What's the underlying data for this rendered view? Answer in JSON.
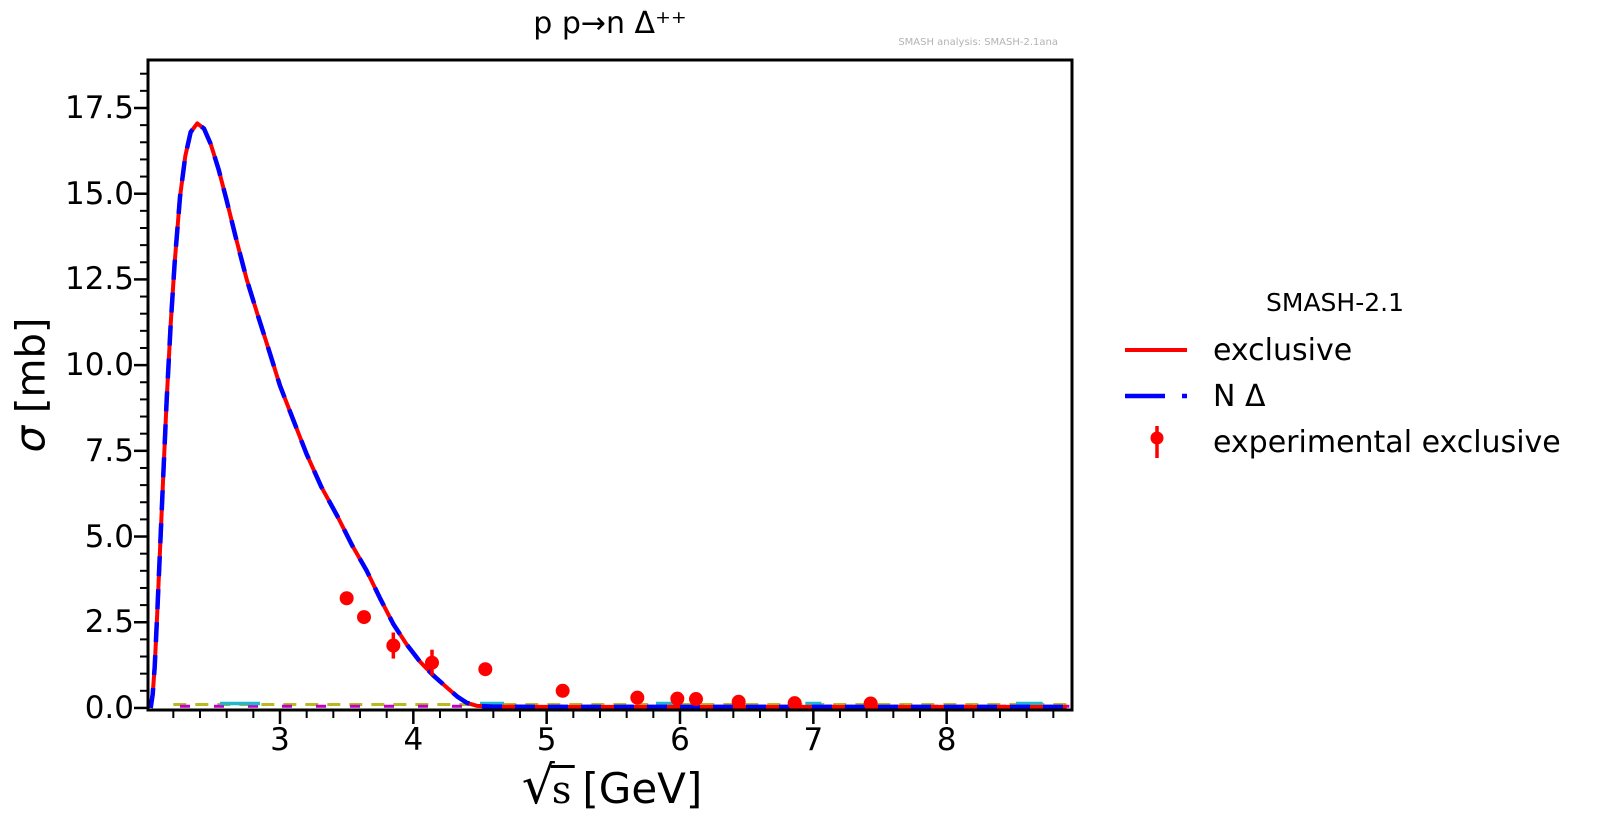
{
  "chart_data": {
    "type": "line",
    "title": "p p→n Δ⁺⁺",
    "analysis_note": "SMASH analysis: SMASH-2.1ana",
    "xlabel": {
      "radical": "√",
      "arg": "s",
      "unit": "[GeV]"
    },
    "ylabel": {
      "symbol": "σ",
      "unit": " [mb]"
    },
    "xlim": [
      2.01,
      8.94
    ],
    "ylim": [
      -0.06,
      18.9
    ],
    "x_major_ticks": [
      3,
      4,
      5,
      6,
      7,
      8
    ],
    "x_tick_labels": [
      "3",
      "4",
      "5",
      "6",
      "7",
      "8"
    ],
    "x_minor_step": 0.2,
    "y_major_ticks": [
      0,
      2.5,
      5,
      7.5,
      10,
      12.5,
      15,
      17.5
    ],
    "y_tick_labels": [
      "0.0",
      "2.5",
      "5.0",
      "7.5",
      "10.0",
      "12.5",
      "15.0",
      "17.5"
    ],
    "y_minor_step": 0.5,
    "grid": false,
    "series": [
      {
        "name": "exclusive",
        "color": "#ff0000",
        "style": "solid"
      },
      {
        "name": "N Δ",
        "color": "#0000ff",
        "style": "dashed"
      }
    ],
    "curve": [
      [
        2.03,
        0.0
      ],
      [
        2.045,
        0.4
      ],
      [
        2.06,
        1.2
      ],
      [
        2.08,
        2.8
      ],
      [
        2.1,
        4.6
      ],
      [
        2.125,
        6.8
      ],
      [
        2.15,
        9.0
      ],
      [
        2.18,
        11.2
      ],
      [
        2.21,
        13.0
      ],
      [
        2.25,
        14.9
      ],
      [
        2.29,
        16.1
      ],
      [
        2.33,
        16.8
      ],
      [
        2.38,
        17.05
      ],
      [
        2.43,
        16.9
      ],
      [
        2.48,
        16.45
      ],
      [
        2.54,
        15.7
      ],
      [
        2.6,
        14.8
      ],
      [
        2.67,
        13.7
      ],
      [
        2.75,
        12.5
      ],
      [
        2.83,
        11.5
      ],
      [
        2.92,
        10.4
      ],
      [
        3.0,
        9.4
      ],
      [
        3.1,
        8.4
      ],
      [
        3.2,
        7.4
      ],
      [
        3.31,
        6.45
      ],
      [
        3.43,
        5.6
      ],
      [
        3.54,
        4.75
      ],
      [
        3.65,
        4.0
      ],
      [
        3.75,
        3.2
      ],
      [
        3.85,
        2.45
      ],
      [
        3.95,
        1.85
      ],
      [
        4.05,
        1.35
      ],
      [
        4.15,
        0.95
      ],
      [
        4.25,
        0.6
      ],
      [
        4.33,
        0.33
      ],
      [
        4.4,
        0.15
      ],
      [
        4.48,
        0.06
      ],
      [
        4.6,
        0.04
      ],
      [
        5.0,
        0.03
      ],
      [
        5.5,
        0.03
      ],
      [
        6.0,
        0.03
      ],
      [
        6.5,
        0.03
      ],
      [
        7.0,
        0.03
      ],
      [
        7.5,
        0.03
      ],
      [
        8.0,
        0.03
      ],
      [
        8.5,
        0.03
      ],
      [
        8.9,
        0.03
      ]
    ],
    "experimental_points": [
      {
        "x": 3.5,
        "y": 3.2,
        "err": 0.13
      },
      {
        "x": 3.63,
        "y": 2.65,
        "err": 0.13
      },
      {
        "x": 3.85,
        "y": 1.82,
        "err": 0.38
      },
      {
        "x": 4.14,
        "y": 1.32,
        "err": 0.38
      },
      {
        "x": 4.54,
        "y": 1.13,
        "err": 0.1
      },
      {
        "x": 5.12,
        "y": 0.5,
        "err": 0.08
      },
      {
        "x": 5.68,
        "y": 0.3,
        "err": 0.06
      },
      {
        "x": 5.98,
        "y": 0.27,
        "err": 0.06
      },
      {
        "x": 6.12,
        "y": 0.26,
        "err": 0.06
      },
      {
        "x": 6.44,
        "y": 0.18,
        "err": 0.05
      },
      {
        "x": 6.86,
        "y": 0.14,
        "err": 0.05
      },
      {
        "x": 7.43,
        "y": 0.13,
        "err": 0.05
      }
    ],
    "baseline_channels": [
      {
        "color": "#b9b923",
        "style": "dashed",
        "y": 0.1,
        "x_range": [
          2.2,
          8.92
        ],
        "dash": "13 9"
      },
      {
        "color": "#c000c0",
        "style": "dashed",
        "y": 0.05,
        "x_range": [
          2.25,
          8.92
        ],
        "dash": "10 24"
      },
      {
        "color": "#1fb8cf",
        "style": "segments",
        "y": 0.13,
        "segments": [
          [
            2.55,
            2.85
          ],
          [
            4.5,
            4.68
          ],
          [
            5.82,
            5.96
          ],
          [
            6.94,
            7.06
          ],
          [
            8.52,
            8.72
          ]
        ]
      }
    ],
    "colors": {
      "exclusive": "#ff0000",
      "n_delta": "#0000ff",
      "experimental": "#ff0000",
      "axis": "#000000",
      "watermark": "#b3b3b3"
    }
  },
  "legend": {
    "title": "SMASH-2.1",
    "items": [
      {
        "label": "exclusive",
        "color": "#ff0000",
        "marker": "solid-line"
      },
      {
        "label": "N Δ",
        "color": "#0000ff",
        "marker": "dashed-line"
      },
      {
        "label": "experimental exclusive",
        "color": "#ff0000",
        "marker": "errorbar-point"
      }
    ]
  }
}
